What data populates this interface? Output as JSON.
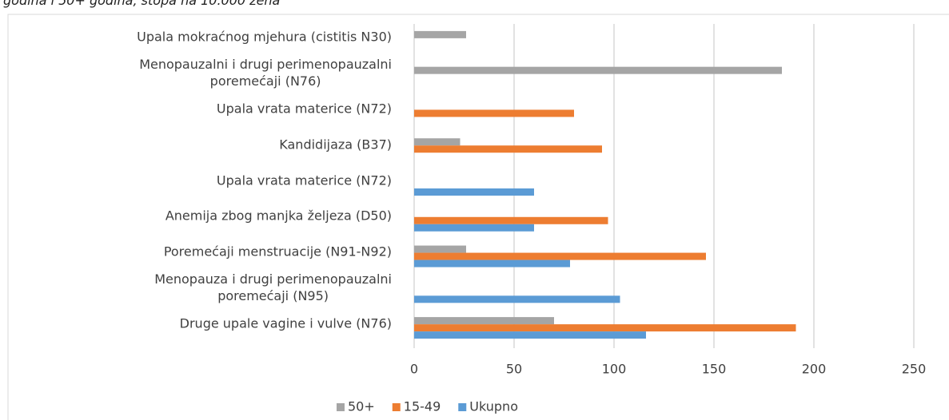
{
  "chart_data": {
    "type": "barh",
    "subtitle": "godina i 50+ godina, stopa na 10.000 žena",
    "categories": [
      "Upala mokraćnog mjehura (cistitis N30)",
      "Menopauzalni i drugi perimenopauzalni\nporemećaji (N76)",
      "Upala vrata materice (N72)",
      "Kandidijaza (B37)",
      "Upala vrata materice (N72)",
      "Anemija zbog manjka željeza (D50)",
      "Poremećaji menstruacije (N91-N92)",
      "Menopauza i drugi  perimenopauzalni\nporemećaji (N95)",
      "Druge upale vagine i vulve (N76)"
    ],
    "series": [
      {
        "name": "50+",
        "color": "#a5a5a5",
        "values": [
          26,
          184,
          null,
          23,
          null,
          null,
          26,
          null,
          70
        ]
      },
      {
        "name": "15-49",
        "color": "#ed7d31",
        "values": [
          null,
          null,
          80,
          94,
          null,
          97,
          146,
          null,
          191
        ]
      },
      {
        "name": "Ukupno",
        "color": "#5b9bd5",
        "values": [
          null,
          null,
          null,
          null,
          60,
          60,
          78,
          103,
          116
        ]
      }
    ],
    "xlim": [
      0,
      250
    ],
    "xticks": [
      0,
      50,
      100,
      150,
      200,
      250
    ],
    "grid": true,
    "legend": "bottom"
  }
}
